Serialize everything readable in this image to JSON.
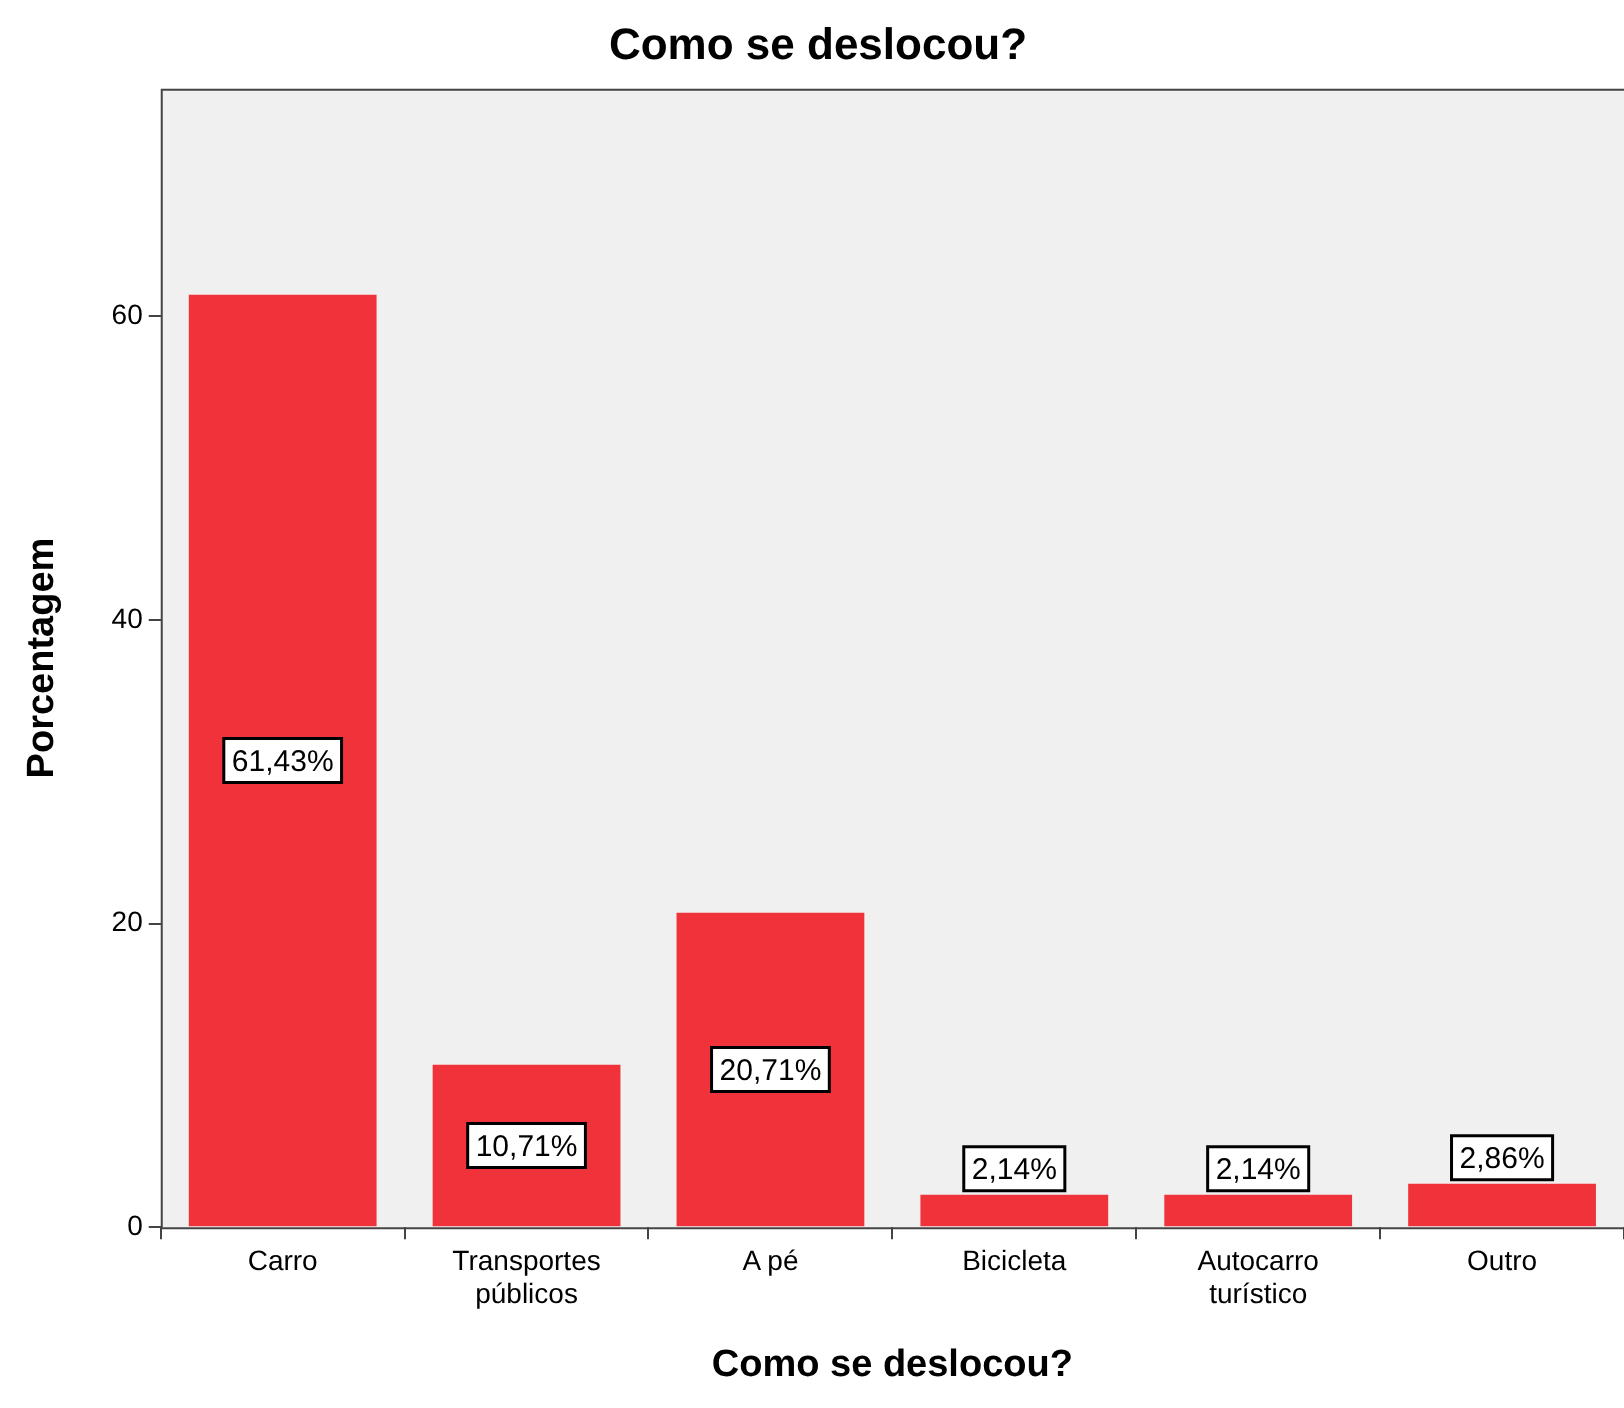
{
  "chart_data": {
    "type": "bar",
    "title": "Como se deslocou?",
    "xlabel": "Como se deslocou?",
    "ylabel": "Porcentagem",
    "categories": [
      "Carro",
      "Transportes públicos",
      "A pé",
      "Bicicleta",
      "Autocarro turístico",
      "Outro"
    ],
    "values": [
      61.43,
      10.71,
      20.71,
      2.14,
      2.14,
      2.86
    ],
    "value_labels": [
      "61,43%",
      "10,71%",
      "20,71%",
      "2,14%",
      "2,14%",
      "2,86%"
    ],
    "color": "#f0323b",
    "ylim": [
      0,
      75
    ],
    "yticks": [
      0,
      20,
      40,
      60
    ],
    "grid": false,
    "legend": false
  }
}
